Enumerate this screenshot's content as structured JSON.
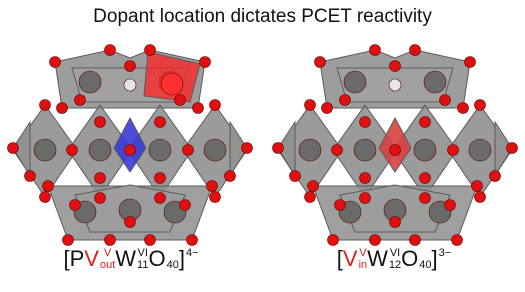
{
  "title": "Dopant location dictates PCET reactivity",
  "structures": [
    {
      "highlight": "out",
      "formula": [
        {
          "base": "[P"
        },
        {
          "base": "V",
          "sup": "V",
          "sub": "out",
          "color": "#e0201b"
        },
        {
          "base": "W",
          "sup": "VI",
          "sub": "11"
        },
        {
          "base": "O",
          "sub": "40"
        },
        {
          "base": "]",
          "sup": "4−"
        }
      ]
    },
    {
      "highlight": "in",
      "formula": [
        {
          "base": "["
        },
        {
          "base": "V",
          "sup": "V",
          "sub": "in",
          "color": "#e0201b"
        },
        {
          "base": "W",
          "sup": "VI",
          "sub": "12"
        },
        {
          "base": "O",
          "sub": "40"
        },
        {
          "base": "]",
          "sup": "3−"
        }
      ]
    }
  ]
}
